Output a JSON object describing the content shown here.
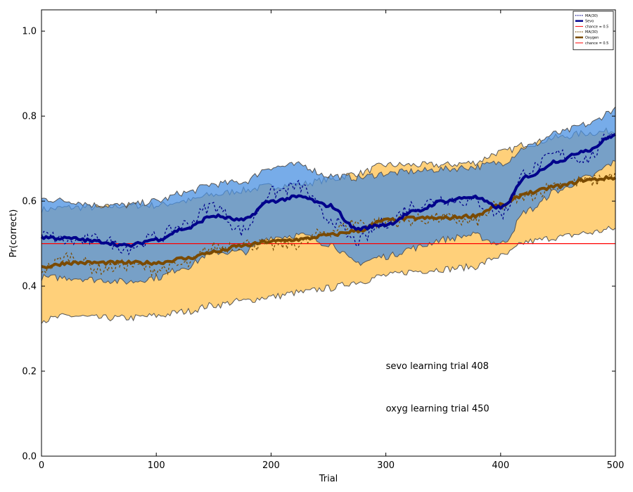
{
  "chart_data": {
    "type": "line",
    "title": "",
    "xlabel": "Trial",
    "ylabel": "Pr(correct)",
    "xlim": [
      0,
      500
    ],
    "ylim": [
      0.0,
      1.05
    ],
    "xticks": [
      "0",
      "100",
      "200",
      "300",
      "400",
      "500"
    ],
    "yticks": [
      "0.0",
      "0.2",
      "0.4",
      "0.6",
      "0.8",
      "1.0"
    ],
    "grid": false,
    "legend_position": "top-right",
    "chance_level": 0.5,
    "colors": {
      "sevo_line": "#00008b",
      "sevo_band": "#4a90e2",
      "oxygen_line": "#7a4a00",
      "oxygen_band": "#ffb733",
      "chance": "#ff0000",
      "band_edge": "#555555"
    },
    "legend": [
      {
        "label": "MA(30)",
        "style": "dotted-blue"
      },
      {
        "label": "Sevo",
        "style": "solid-blue"
      },
      {
        "label": "chance = 0.5",
        "style": "solid-red"
      },
      {
        "label": "MA(30)",
        "style": "dotted-brown"
      },
      {
        "label": "Oxygen",
        "style": "solid-brown"
      },
      {
        "label": "chance = 0.5",
        "style": "solid-red"
      }
    ],
    "annotations": [
      {
        "text": "sevo learning trial  408",
        "x": 300,
        "y": 0.205
      },
      {
        "text": "oxyg learning trial  450",
        "x": 300,
        "y": 0.105
      }
    ],
    "series": [
      {
        "name": "Sevo",
        "x": [
          0,
          25,
          50,
          75,
          100,
          125,
          150,
          175,
          200,
          225,
          250,
          275,
          300,
          325,
          350,
          375,
          400,
          425,
          450,
          475,
          500
        ],
        "values": [
          0.515,
          0.512,
          0.505,
          0.495,
          0.51,
          0.535,
          0.565,
          0.555,
          0.6,
          0.61,
          0.59,
          0.535,
          0.545,
          0.575,
          0.6,
          0.61,
          0.585,
          0.66,
          0.695,
          0.72,
          0.755
        ],
        "ma30": [
          0.52,
          0.505,
          0.51,
          0.49,
          0.515,
          0.545,
          0.59,
          0.53,
          0.62,
          0.635,
          0.56,
          0.505,
          0.55,
          0.59,
          0.605,
          0.6,
          0.57,
          0.675,
          0.71,
          0.7,
          0.765
        ],
        "upper": [
          0.605,
          0.6,
          0.59,
          0.59,
          0.6,
          0.62,
          0.64,
          0.645,
          0.68,
          0.685,
          0.66,
          0.655,
          0.665,
          0.67,
          0.675,
          0.68,
          0.69,
          0.73,
          0.76,
          0.78,
          0.815
        ],
        "lower": [
          0.42,
          0.42,
          0.415,
          0.41,
          0.42,
          0.445,
          0.48,
          0.48,
          0.515,
          0.52,
          0.5,
          0.455,
          0.47,
          0.49,
          0.51,
          0.52,
          0.5,
          0.58,
          0.625,
          0.655,
          0.69
        ]
      },
      {
        "name": "Oxygen",
        "x": [
          0,
          25,
          50,
          75,
          100,
          125,
          150,
          175,
          200,
          225,
          250,
          275,
          300,
          325,
          350,
          375,
          400,
          425,
          450,
          475,
          500
        ],
        "values": [
          0.445,
          0.455,
          0.455,
          0.455,
          0.455,
          0.465,
          0.48,
          0.495,
          0.505,
          0.51,
          0.52,
          0.53,
          0.555,
          0.56,
          0.56,
          0.565,
          0.59,
          0.62,
          0.635,
          0.65,
          0.655
        ],
        "ma30": [
          0.44,
          0.47,
          0.44,
          0.45,
          0.44,
          0.45,
          0.49,
          0.5,
          0.495,
          0.5,
          0.53,
          0.55,
          0.55,
          0.555,
          0.56,
          0.55,
          0.59,
          0.615,
          0.64,
          0.645,
          0.66
        ],
        "upper": [
          0.58,
          0.585,
          0.585,
          0.59,
          0.59,
          0.6,
          0.615,
          0.625,
          0.635,
          0.64,
          0.65,
          0.665,
          0.685,
          0.685,
          0.685,
          0.69,
          0.715,
          0.735,
          0.75,
          0.76,
          0.765
        ],
        "lower": [
          0.32,
          0.33,
          0.325,
          0.325,
          0.33,
          0.34,
          0.355,
          0.365,
          0.375,
          0.385,
          0.395,
          0.41,
          0.425,
          0.435,
          0.44,
          0.445,
          0.47,
          0.505,
          0.515,
          0.525,
          0.535
        ]
      }
    ]
  }
}
